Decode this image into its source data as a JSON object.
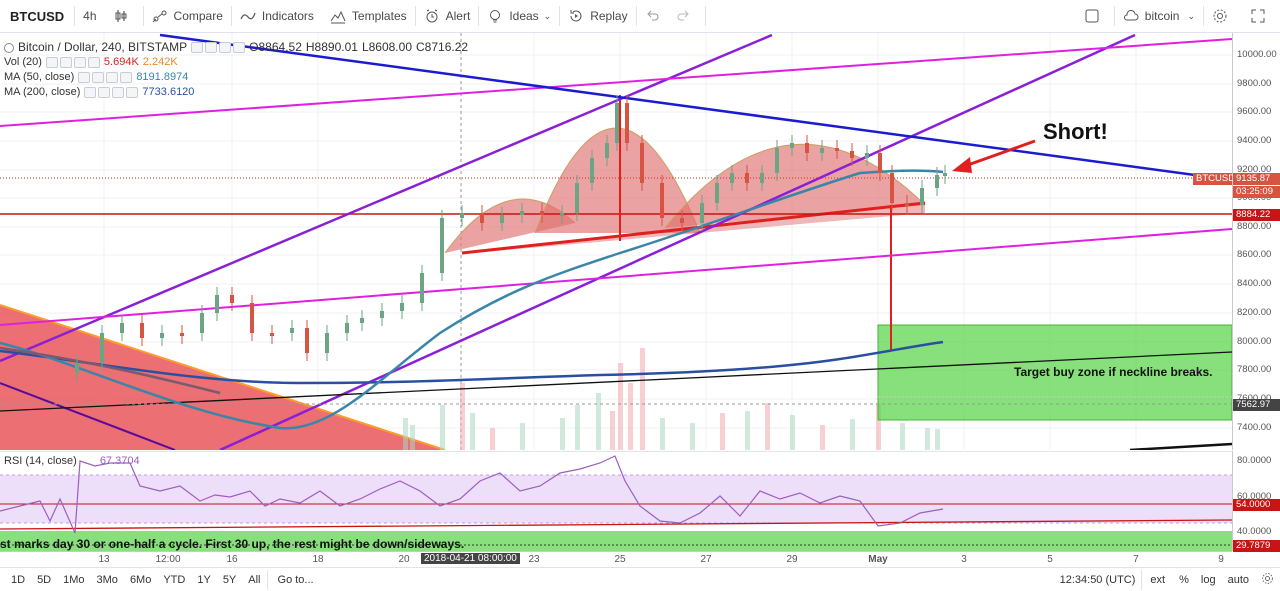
{
  "toolbar": {
    "symbol": "BTCUSD",
    "interval": "4h",
    "compare": "Compare",
    "indicators": "Indicators",
    "templates": "Templates",
    "alert": "Alert",
    "ideas": "Ideas",
    "replay": "Replay",
    "layout_name": "bitcoin"
  },
  "legend": {
    "title": "Bitcoin / Dollar, 240, BITSTAMP",
    "o": "O8864.52",
    "h": "H8890.01",
    "l": "L8608.00",
    "c": "C8716.22",
    "vol_label": "Vol (20)",
    "vol_a": "5.694K",
    "vol_b": "2.242K",
    "ma50_label": "MA (50, close)",
    "ma50_value": "8191.8974",
    "ma200_label": "MA (200, close)",
    "ma200_value": "7733.6120"
  },
  "annotations": {
    "short": "Short!",
    "target": "Target buy zone if neckline breaks.",
    "bottom_note": "st marks day 30 or one-half a cycle. First 30 up, the rest might be down/sideways."
  },
  "price_axis": {
    "ticks": [
      "10000.00",
      "9800.00",
      "9600.00",
      "9400.00",
      "9200.00",
      "9000.00",
      "8800.00",
      "8600.00",
      "8400.00",
      "8200.00",
      "8000.00",
      "7800.00",
      "7600.00",
      "7400.00"
    ],
    "tag_symbol": "BTCUSD",
    "tag_price": "9135.87",
    "tag_time": "03:25:09",
    "tag_neck": "8884.22",
    "tag_cross": "7562.97"
  },
  "rsi": {
    "label": "RSI (14, close)",
    "value": "67.3704",
    "ticks": [
      "80.0000",
      "60.0000",
      "40.0000"
    ],
    "tag_upper": "54.0000",
    "tag_lower": "29.7879"
  },
  "time_axis": {
    "labels": [
      "13",
      "12:00",
      "16",
      "18",
      "20",
      "23",
      "25",
      "27",
      "29",
      "May",
      "3",
      "5",
      "7",
      "9"
    ],
    "crosshair": "2018-04-21 08:00:00"
  },
  "bottom_bar": {
    "ranges": [
      "1D",
      "5D",
      "1Mo",
      "3Mo",
      "6Mo",
      "YTD",
      "1Y",
      "5Y",
      "All"
    ],
    "goto": "Go to...",
    "clock": "12:34:50 (UTC)",
    "ext": "ext",
    "pct": "%",
    "log": "log",
    "auto": "auto"
  },
  "colors": {
    "up": "#6ba583",
    "down": "#d75442",
    "blue_line": "#1b1bd0",
    "purple": "#8a1fd6",
    "magenta": "#e020e0",
    "neckline": "#e0201f",
    "ma50": "#3a86a8",
    "ma200": "#2b4fa0",
    "zone": "#5fcf4f"
  }
}
